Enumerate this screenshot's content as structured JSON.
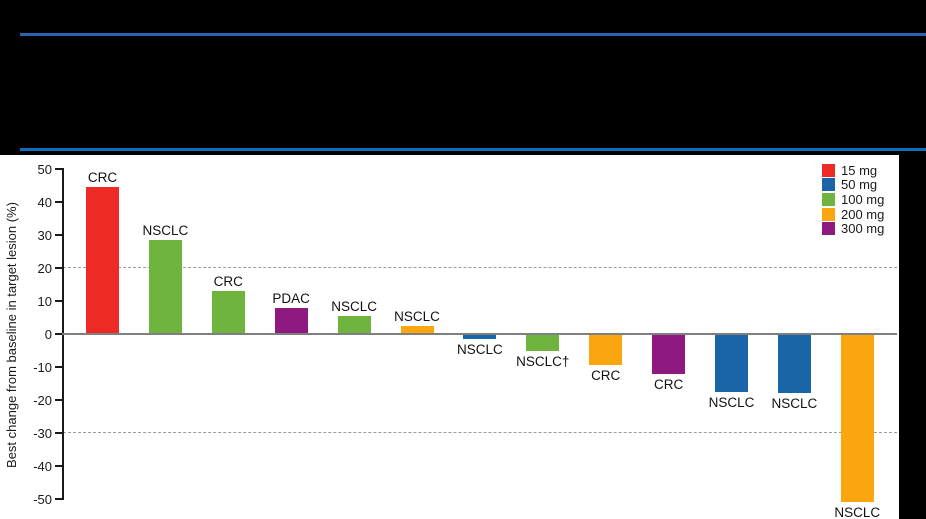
{
  "masthead": {
    "rule_top_color": "#2D63AD",
    "rule_bottom_color": "#0E70BD"
  },
  "chart_data": {
    "type": "bar",
    "title": "",
    "ylabel": "Best change from baseline in target lesion (%)",
    "ylim": [
      -50,
      50
    ],
    "ytick_labels": [
      "50",
      "40",
      "30",
      "20",
      "10",
      "0",
      "-10",
      "-20",
      "-30",
      "-40",
      "-50"
    ],
    "ytick_values": [
      50,
      40,
      30,
      20,
      10,
      0,
      -10,
      -20,
      -30,
      -40,
      -50
    ],
    "reference_lines": [
      20,
      -30
    ],
    "grid": "dashed-horizontal-at-20-and--30",
    "legend_position": "top-right",
    "legend": [
      {
        "label": "15 mg",
        "color": "#EE2A24"
      },
      {
        "label": "50 mg",
        "color": "#1A64A8"
      },
      {
        "label": "100 mg",
        "color": "#6EB43F"
      },
      {
        "label": "200 mg",
        "color": "#FBA60F"
      },
      {
        "label": "300 mg",
        "color": "#8E1980"
      }
    ],
    "bars": [
      {
        "label": "CRC",
        "dose": "15 mg",
        "value": 44.5
      },
      {
        "label": "NSCLC",
        "dose": "100 mg",
        "value": 28.5
      },
      {
        "label": "CRC",
        "dose": "100 mg",
        "value": 13
      },
      {
        "label": "PDAC",
        "dose": "300 mg",
        "value": 8
      },
      {
        "label": "NSCLC",
        "dose": "100 mg",
        "value": 5.5
      },
      {
        "label": "NSCLC",
        "dose": "200 mg",
        "value": 2.5
      },
      {
        "label": "NSCLC",
        "dose": "50 mg",
        "value": -1.5
      },
      {
        "label": "NSCLC†",
        "dose": "100 mg",
        "value": -5
      },
      {
        "label": "CRC",
        "dose": "200 mg",
        "value": -9.5
      },
      {
        "label": "CRC",
        "dose": "300 mg",
        "value": -12
      },
      {
        "label": "NSCLC",
        "dose": "50 mg",
        "value": -17.5
      },
      {
        "label": "NSCLC",
        "dose": "50 mg",
        "value": -18
      },
      {
        "label": "NSCLC",
        "dose": "200 mg",
        "value": -51
      }
    ]
  }
}
